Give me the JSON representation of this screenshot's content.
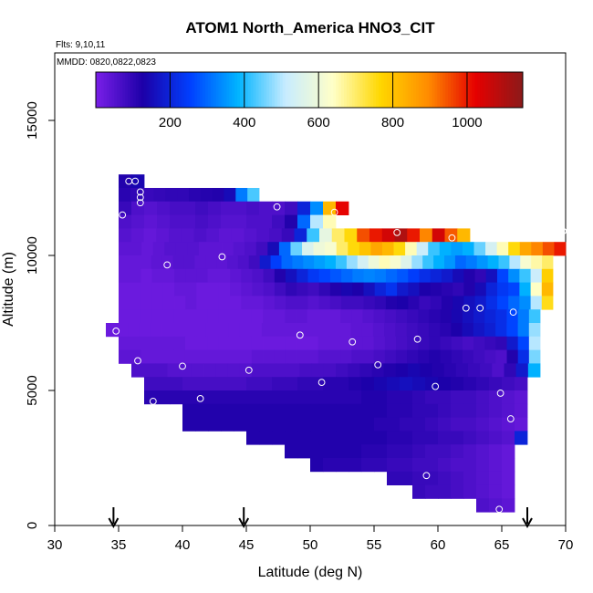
{
  "chart_data": {
    "type": "heatmap",
    "title": "ATOM1 North_America HNO3_CIT",
    "subtitle": "Flts: 9,10,11",
    "annotation": "MMDD: 0820,0822,0823",
    "xlabel": "Latitude (deg N)",
    "ylabel": "Altitude (m)",
    "xlim": [
      30,
      70
    ],
    "ylim": [
      0,
      17500
    ],
    "xticks": [
      "30",
      "35",
      "40",
      "45",
      "50",
      "55",
      "60",
      "65",
      "70"
    ],
    "yticks": [
      "0",
      "5000",
      "10000",
      "15000"
    ],
    "colorbar": {
      "range": [
        0,
        1150
      ],
      "ticks": [
        "200",
        "400",
        "600",
        "800",
        "1000"
      ],
      "colors": [
        "#7a1fe8",
        "#1c00a8",
        "#0040ff",
        "#00b4ff",
        "#c8ecff",
        "#ffffc8",
        "#ffd700",
        "#ff8c00",
        "#e60000",
        "#8b1a1a"
      ]
    },
    "grid": false,
    "legend_position": "top",
    "arrow_latitudes": [
      34.6,
      44.8,
      67.0
    ],
    "heatmap_rows": [
      {
        "alt_min": 12500,
        "alt_max": 13000,
        "lat_min": 35.0,
        "lat_max": 37.0,
        "values": [
          120,
          140
        ]
      },
      {
        "alt_min": 12000,
        "alt_max": 12500,
        "lat_min": 35.0,
        "lat_max": 46.0,
        "values": [
          110,
          100,
          90,
          95,
          100,
          100,
          110,
          115,
          120,
          150,
          320,
          430
        ]
      },
      {
        "alt_min": 11500,
        "alt_max": 12000,
        "lat_min": 35.0,
        "lat_max": 53.0,
        "values": [
          90,
          60,
          50,
          60,
          70,
          70,
          80,
          70,
          60,
          60,
          70,
          60,
          60,
          80,
          200,
          340,
          820,
          1020
        ]
      },
      {
        "alt_min": 11000,
        "alt_max": 11500,
        "lat_min": 35.0,
        "lat_max": 52.0,
        "values": [
          60,
          50,
          40,
          50,
          60,
          60,
          70,
          60,
          50,
          50,
          60,
          60,
          80,
          120,
          300,
          500,
          650
        ]
      },
      {
        "alt_min": 10500,
        "alt_max": 11000,
        "lat_min": 35.0,
        "lat_max": 62.5,
        "values": [
          50,
          40,
          30,
          40,
          50,
          50,
          60,
          50,
          40,
          40,
          50,
          60,
          70,
          90,
          200,
          420,
          580,
          700,
          760,
          950,
          1000,
          1050,
          1100,
          1000,
          900,
          1050,
          940,
          820
        ]
      },
      {
        "alt_min": 10000,
        "alt_max": 10500,
        "lat_min": 35.0,
        "lat_max": 70.0,
        "values": [
          40,
          40,
          30,
          40,
          50,
          50,
          50,
          40,
          40,
          40,
          50,
          60,
          80,
          150,
          300,
          450,
          550,
          600,
          620,
          700,
          760,
          800,
          850,
          820,
          760,
          650,
          520,
          420,
          380,
          360,
          380,
          450,
          540,
          650,
          760,
          850,
          900,
          950,
          1000
        ]
      },
      {
        "alt_min": 9500,
        "alt_max": 10000,
        "lat_min": 35.0,
        "lat_max": 69.0,
        "values": [
          30,
          30,
          30,
          40,
          40,
          50,
          50,
          40,
          40,
          40,
          50,
          60,
          80,
          180,
          250,
          300,
          320,
          340,
          360,
          380,
          420,
          480,
          540,
          600,
          650,
          620,
          560,
          480,
          420,
          380,
          350,
          300,
          320,
          350,
          380,
          420,
          500,
          620,
          660,
          700
        ]
      },
      {
        "alt_min": 9000,
        "alt_max": 9500,
        "lat_min": 35.0,
        "lat_max": 69.0,
        "values": [
          30,
          30,
          20,
          30,
          30,
          40,
          40,
          40,
          30,
          30,
          40,
          50,
          60,
          80,
          120,
          160,
          200,
          240,
          260,
          280,
          300,
          320,
          330,
          320,
          300,
          280,
          250,
          220,
          200,
          180,
          150,
          120,
          100,
          160,
          260,
          340,
          420,
          520,
          780
        ]
      },
      {
        "alt_min": 8500,
        "alt_max": 9000,
        "lat_min": 35.0,
        "lat_max": 69.0,
        "values": [
          20,
          20,
          20,
          20,
          20,
          30,
          30,
          20,
          20,
          20,
          30,
          40,
          50,
          60,
          80,
          100,
          90,
          80,
          100,
          120,
          140,
          130,
          160,
          200,
          230,
          180,
          160,
          130,
          120,
          110,
          100,
          120,
          150,
          200,
          240,
          260,
          380,
          640,
          820
        ]
      },
      {
        "alt_min": 8000,
        "alt_max": 8500,
        "lat_min": 35.0,
        "lat_max": 69.0,
        "values": [
          20,
          20,
          20,
          20,
          20,
          20,
          30,
          20,
          20,
          20,
          20,
          30,
          30,
          40,
          50,
          60,
          60,
          50,
          60,
          70,
          80,
          80,
          90,
          100,
          120,
          130,
          110,
          90,
          100,
          120,
          140,
          160,
          180,
          220,
          260,
          300,
          340,
          500,
          750
        ]
      },
      {
        "alt_min": 7500,
        "alt_max": 8000,
        "lat_min": 35.0,
        "lat_max": 68.0,
        "values": [
          20,
          20,
          20,
          20,
          20,
          20,
          20,
          20,
          20,
          20,
          20,
          20,
          20,
          30,
          30,
          40,
          40,
          30,
          30,
          30,
          40,
          40,
          50,
          60,
          70,
          80,
          90,
          100,
          110,
          120,
          140,
          160,
          180,
          200,
          220,
          260,
          320,
          420
        ]
      },
      {
        "alt_min": 7000,
        "alt_max": 7500,
        "lat_min": 34.0,
        "lat_max": 68.0,
        "values": [
          20,
          20,
          20,
          20,
          20,
          20,
          20,
          20,
          20,
          20,
          20,
          20,
          20,
          20,
          30,
          30,
          30,
          30,
          30,
          30,
          30,
          30,
          40,
          40,
          50,
          60,
          70,
          80,
          90,
          100,
          110,
          130,
          150,
          170,
          190,
          220,
          260,
          320,
          480
        ]
      },
      {
        "alt_min": 6500,
        "alt_max": 7000,
        "lat_min": 35.0,
        "lat_max": 68.0,
        "values": [
          30,
          30,
          30,
          30,
          30,
          30,
          20,
          20,
          20,
          20,
          20,
          20,
          20,
          20,
          20,
          20,
          20,
          20,
          30,
          30,
          30,
          40,
          40,
          50,
          60,
          70,
          80,
          90,
          100,
          90,
          80,
          70,
          80,
          90,
          100,
          180,
          260,
          500
        ]
      },
      {
        "alt_min": 6000,
        "alt_max": 6500,
        "lat_min": 35.0,
        "lat_max": 68.0,
        "values": [
          40,
          40,
          30,
          30,
          30,
          30,
          30,
          30,
          30,
          30,
          30,
          30,
          40,
          40,
          40,
          40,
          40,
          40,
          50,
          50,
          50,
          60,
          60,
          70,
          80,
          90,
          100,
          110,
          120,
          110,
          100,
          90,
          80,
          70,
          60,
          120,
          220,
          460
        ]
      },
      {
        "alt_min": 5500,
        "alt_max": 6000,
        "lat_min": 36.0,
        "lat_max": 68.0,
        "values": [
          60,
          60,
          60,
          50,
          50,
          50,
          50,
          50,
          50,
          50,
          60,
          60,
          60,
          60,
          70,
          70,
          70,
          80,
          90,
          100,
          110,
          120,
          130,
          140,
          130,
          120,
          110,
          100,
          90,
          80,
          60,
          100,
          180,
          380
        ]
      },
      {
        "alt_min": 5000,
        "alt_max": 5500,
        "lat_min": 37.0,
        "lat_max": 67.0,
        "values": [
          80,
          80,
          80,
          70,
          70,
          70,
          70,
          70,
          80,
          80,
          90,
          90,
          100,
          100,
          110,
          110,
          120,
          130,
          140,
          150,
          160,
          150,
          140,
          130,
          120,
          110,
          100,
          90,
          80,
          70
        ]
      },
      {
        "alt_min": 4500,
        "alt_max": 5000,
        "lat_min": 37.0,
        "lat_max": 67.0,
        "values": [
          110,
          110,
          110,
          110,
          110,
          110,
          110,
          110,
          110,
          110,
          110,
          110,
          110,
          110,
          110,
          110,
          110,
          120,
          120,
          110,
          110,
          100,
          90,
          90,
          80,
          80,
          70,
          60,
          50,
          40
        ]
      },
      {
        "alt_min": 4000,
        "alt_max": 4500,
        "lat_min": 40.0,
        "lat_max": 67.0,
        "values": [
          120,
          120,
          120,
          120,
          120,
          120,
          120,
          120,
          120,
          120,
          120,
          120,
          120,
          120,
          120,
          120,
          110,
          110,
          100,
          100,
          90,
          80,
          80,
          70,
          60,
          50,
          40
        ]
      },
      {
        "alt_min": 3500,
        "alt_max": 4000,
        "lat_min": 40.0,
        "lat_max": 67.0,
        "values": [
          120,
          120,
          120,
          120,
          120,
          120,
          120,
          120,
          120,
          120,
          120,
          120,
          120,
          120,
          120,
          110,
          110,
          100,
          100,
          90,
          80,
          70,
          70,
          60,
          50,
          40,
          30
        ]
      },
      {
        "alt_min": 3000,
        "alt_max": 3500,
        "lat_min": 45.0,
        "lat_max": 67.0,
        "values": [
          120,
          120,
          120,
          120,
          120,
          120,
          120,
          120,
          120,
          120,
          120,
          110,
          110,
          100,
          100,
          90,
          90,
          80,
          70,
          60,
          50,
          200
        ]
      },
      {
        "alt_min": 2500,
        "alt_max": 3000,
        "lat_min": 48.0,
        "lat_max": 66.0,
        "values": [
          120,
          120,
          120,
          120,
          120,
          120,
          110,
          110,
          100,
          100,
          90,
          80,
          80,
          70,
          60,
          50,
          40,
          30
        ]
      },
      {
        "alt_min": 2000,
        "alt_max": 2500,
        "lat_min": 50.0,
        "lat_max": 66.0,
        "values": [
          120,
          110,
          110,
          110,
          100,
          100,
          90,
          90,
          80,
          80,
          70,
          60,
          60,
          50,
          40,
          30
        ]
      },
      {
        "alt_min": 1500,
        "alt_max": 2000,
        "lat_min": 56.0,
        "lat_max": 66.0,
        "values": [
          100,
          100,
          90,
          90,
          80,
          70,
          60,
          50,
          40,
          30
        ]
      },
      {
        "alt_min": 1000,
        "alt_max": 1500,
        "lat_min": 58.0,
        "lat_max": 66.0,
        "values": [
          90,
          80,
          80,
          70,
          60,
          50,
          40,
          30
        ]
      },
      {
        "alt_min": 500,
        "alt_max": 1000,
        "lat_min": 63.0,
        "lat_max": 66.0,
        "values": [
          60,
          50,
          40
        ]
      }
    ],
    "flight_points": [
      {
        "lat": 35.8,
        "alt": 12750
      },
      {
        "lat": 36.3,
        "alt": 12750
      },
      {
        "lat": 36.7,
        "alt": 12350
      },
      {
        "lat": 36.7,
        "alt": 12150
      },
      {
        "lat": 36.7,
        "alt": 11950
      },
      {
        "lat": 35.3,
        "alt": 11500
      },
      {
        "lat": 47.4,
        "alt": 11800
      },
      {
        "lat": 51.9,
        "alt": 11600
      },
      {
        "lat": 56.8,
        "alt": 10850
      },
      {
        "lat": 61.1,
        "alt": 10650
      },
      {
        "lat": 69.8,
        "alt": 10900
      },
      {
        "lat": 43.1,
        "alt": 9950
      },
      {
        "lat": 38.8,
        "alt": 9650
      },
      {
        "lat": 62.2,
        "alt": 8050
      },
      {
        "lat": 63.3,
        "alt": 8050
      },
      {
        "lat": 65.9,
        "alt": 7900
      },
      {
        "lat": 34.8,
        "alt": 7200
      },
      {
        "lat": 49.2,
        "alt": 7050
      },
      {
        "lat": 58.4,
        "alt": 6900
      },
      {
        "lat": 53.3,
        "alt": 6800
      },
      {
        "lat": 36.5,
        "alt": 6100
      },
      {
        "lat": 40.0,
        "alt": 5900
      },
      {
        "lat": 45.2,
        "alt": 5750
      },
      {
        "lat": 55.3,
        "alt": 5950
      },
      {
        "lat": 50.9,
        "alt": 5300
      },
      {
        "lat": 59.8,
        "alt": 5150
      },
      {
        "lat": 64.9,
        "alt": 4900
      },
      {
        "lat": 41.4,
        "alt": 4700
      },
      {
        "lat": 37.7,
        "alt": 4600
      },
      {
        "lat": 65.7,
        "alt": 3950
      },
      {
        "lat": 59.1,
        "alt": 1850
      },
      {
        "lat": 64.8,
        "alt": 600
      }
    ]
  }
}
